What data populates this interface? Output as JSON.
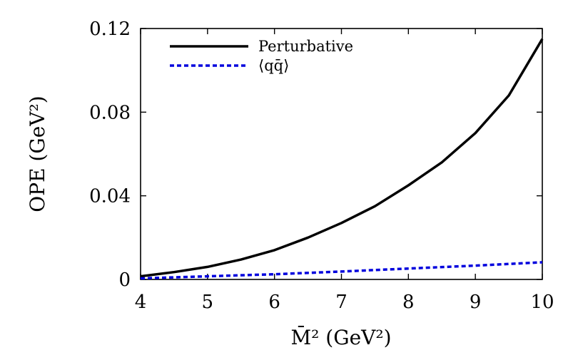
{
  "chart_data": {
    "type": "line",
    "xlabel": "M̄² (GeV²)",
    "ylabel": "OPE (GeV²)",
    "xlim": [
      4,
      10
    ],
    "ylim": [
      0,
      0.12
    ],
    "x_ticks": [
      "4",
      "5",
      "6",
      "7",
      "8",
      "9",
      "10"
    ],
    "y_ticks": [
      "0",
      "0.04",
      "0.08",
      "0.12"
    ],
    "grid": false,
    "legend_position": "top-left",
    "series": [
      {
        "name": "Perturbative",
        "color": "#000000",
        "style": "solid",
        "x": [
          4,
          4.5,
          5,
          5.5,
          6,
          6.5,
          7,
          7.5,
          8,
          8.5,
          9,
          9.5,
          10
        ],
        "y": [
          0.0015,
          0.0035,
          0.006,
          0.0095,
          0.014,
          0.02,
          0.027,
          0.035,
          0.045,
          0.056,
          0.07,
          0.088,
          0.115
        ]
      },
      {
        "name": "⟨qq̄⟩",
        "color": "#0000dd",
        "style": "dashed",
        "x": [
          4,
          5,
          6,
          7,
          8,
          9,
          10
        ],
        "y": [
          0.0005,
          0.0015,
          0.0025,
          0.0038,
          0.0052,
          0.0066,
          0.0082
        ]
      }
    ]
  }
}
